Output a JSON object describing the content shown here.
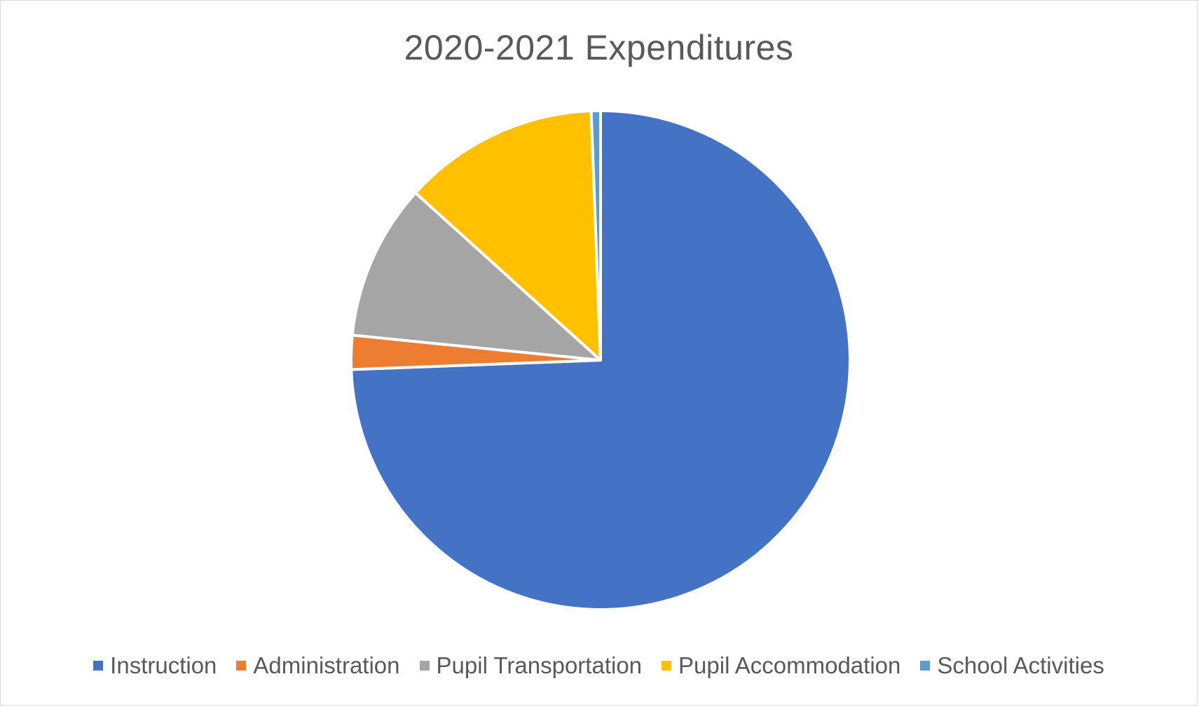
{
  "chart_data": {
    "type": "pie",
    "title": "2020-2021 Expenditures",
    "legend_position": "bottom",
    "slices": [
      {
        "name": "Instruction",
        "value": 74.4,
        "color": "#4472C4"
      },
      {
        "name": "Administration",
        "value": 2.2,
        "color": "#ED7D31"
      },
      {
        "name": "Pupil Transportation",
        "value": 10.1,
        "color": "#A5A5A5"
      },
      {
        "name": "Pupil Accommodation",
        "value": 12.7,
        "color": "#FFC000"
      },
      {
        "name": "School Activities",
        "value": 0.6,
        "color": "#5B9BD5"
      }
    ]
  }
}
